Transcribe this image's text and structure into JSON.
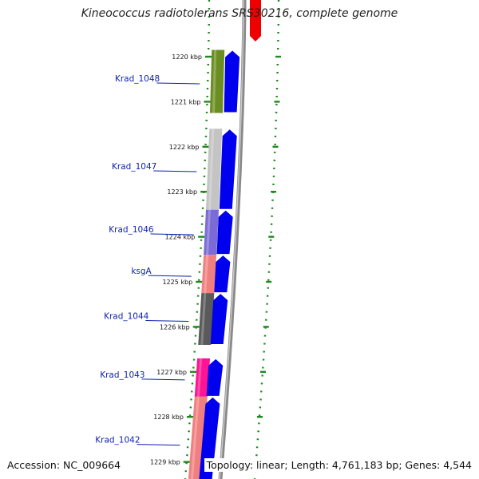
{
  "title": "Kineococcus radiotolerans SRS30216, complete genome",
  "footer": {
    "accession": "Accession: NC_009664",
    "summary": "Topology: linear; Length: 4,761,183 bp; Genes: 4,544"
  },
  "colors": {
    "dotted_guides": "#1c8a1c",
    "strand_arrows": "#0000ee",
    "reverse_arrow": "#ee0000",
    "genome_line": "#8a8a8a",
    "label_text": "#0b1fb0"
  },
  "ticks": [
    {
      "label": "1220 kbp",
      "kbp": 1220
    },
    {
      "label": "1221 kbp",
      "kbp": 1221
    },
    {
      "label": "1222 kbp",
      "kbp": 1222
    },
    {
      "label": "1223 kbp",
      "kbp": 1223
    },
    {
      "label": "1224 kbp",
      "kbp": 1224
    },
    {
      "label": "1225 kbp",
      "kbp": 1225
    },
    {
      "label": "1226 kbp",
      "kbp": 1226
    },
    {
      "label": "1227 kbp",
      "kbp": 1227
    },
    {
      "label": "1228 kbp",
      "kbp": 1228
    },
    {
      "label": "1229 kbp",
      "kbp": 1229
    }
  ],
  "genes": [
    {
      "name": "Krad_1048",
      "start_kbp": 1219.85,
      "end_kbp": 1221.25,
      "color": "#6b8e23"
    },
    {
      "name": "Krad_1047",
      "start_kbp": 1221.6,
      "end_kbp": 1223.4,
      "color": "#c4c4c4"
    },
    {
      "name": "Krad_1046",
      "start_kbp": 1223.4,
      "end_kbp": 1224.4,
      "color": "#7a6bd6"
    },
    {
      "name": "ksgA",
      "start_kbp": 1224.4,
      "end_kbp": 1225.25,
      "color": "#f08080"
    },
    {
      "name": "Krad_1044",
      "start_kbp": 1225.25,
      "end_kbp": 1226.4,
      "color": "#5a5a5a"
    },
    {
      "name": "Krad_1043",
      "start_kbp": 1226.7,
      "end_kbp": 1227.55,
      "color": "#ff1493"
    },
    {
      "name": "Krad_1042",
      "start_kbp": 1227.55,
      "end_kbp": 1229.6,
      "color": "#f08080"
    }
  ]
}
